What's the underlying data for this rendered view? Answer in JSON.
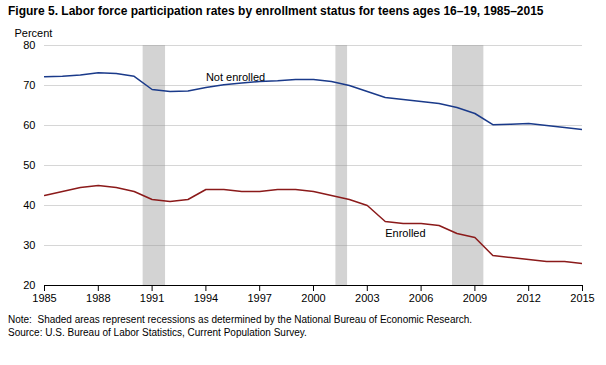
{
  "chart_data": {
    "type": "line",
    "title": "Figure 5. Labor force participation rates by enrollment status for teens ages 16–19, 1985–2015",
    "ylabel": "Percent",
    "x": [
      1985,
      1986,
      1987,
      1988,
      1989,
      1990,
      1991,
      1992,
      1993,
      1994,
      1995,
      1996,
      1997,
      1998,
      1999,
      2000,
      2001,
      2002,
      2003,
      2004,
      2005,
      2006,
      2007,
      2008,
      2009,
      2010,
      2011,
      2012,
      2013,
      2014,
      2015
    ],
    "series": [
      {
        "name": "Not enrolled",
        "color": "#1a3a8a",
        "values": [
          72.2,
          72.3,
          72.6,
          73.2,
          73.0,
          72.3,
          69.0,
          68.5,
          68.6,
          69.5,
          70.2,
          70.6,
          71.0,
          71.2,
          71.5,
          71.5,
          71.0,
          70.0,
          68.5,
          67.0,
          66.5,
          66.0,
          65.5,
          64.5,
          63.0,
          60.2,
          60.3,
          60.5,
          60.0,
          59.5,
          59.0
        ]
      },
      {
        "name": "Enrolled",
        "color": "#8b1a1a",
        "values": [
          42.5,
          43.5,
          44.5,
          45.0,
          44.5,
          43.5,
          41.5,
          41.0,
          41.5,
          44.0,
          44.0,
          43.5,
          43.5,
          44.0,
          44.0,
          43.5,
          42.5,
          41.5,
          40.0,
          36.0,
          35.5,
          35.5,
          35.0,
          33.0,
          32.0,
          27.5,
          27.0,
          26.5,
          26.0,
          26.0,
          25.5
        ]
      }
    ],
    "recession_bands": {
      "ranges": [
        [
          1990.5,
          1991.75
        ],
        [
          2001.25,
          2001.9
        ],
        [
          2007.75,
          2009.5
        ]
      ],
      "color": "#d3d3d3"
    },
    "xlim": [
      1985,
      2015
    ],
    "xticks": [
      1985,
      1988,
      1991,
      1994,
      1997,
      2000,
      2003,
      2006,
      2009,
      2012,
      2015
    ],
    "ylim": [
      20,
      80
    ],
    "yticks": [
      20,
      30,
      40,
      50,
      60,
      70,
      80
    ],
    "grid": true,
    "note": "Note:  Shaded areas represent recessions as determined by the National Bureau of Economic Research.\nSource: U.S. Bureau of Labor Statistics, Current Population Survey."
  }
}
